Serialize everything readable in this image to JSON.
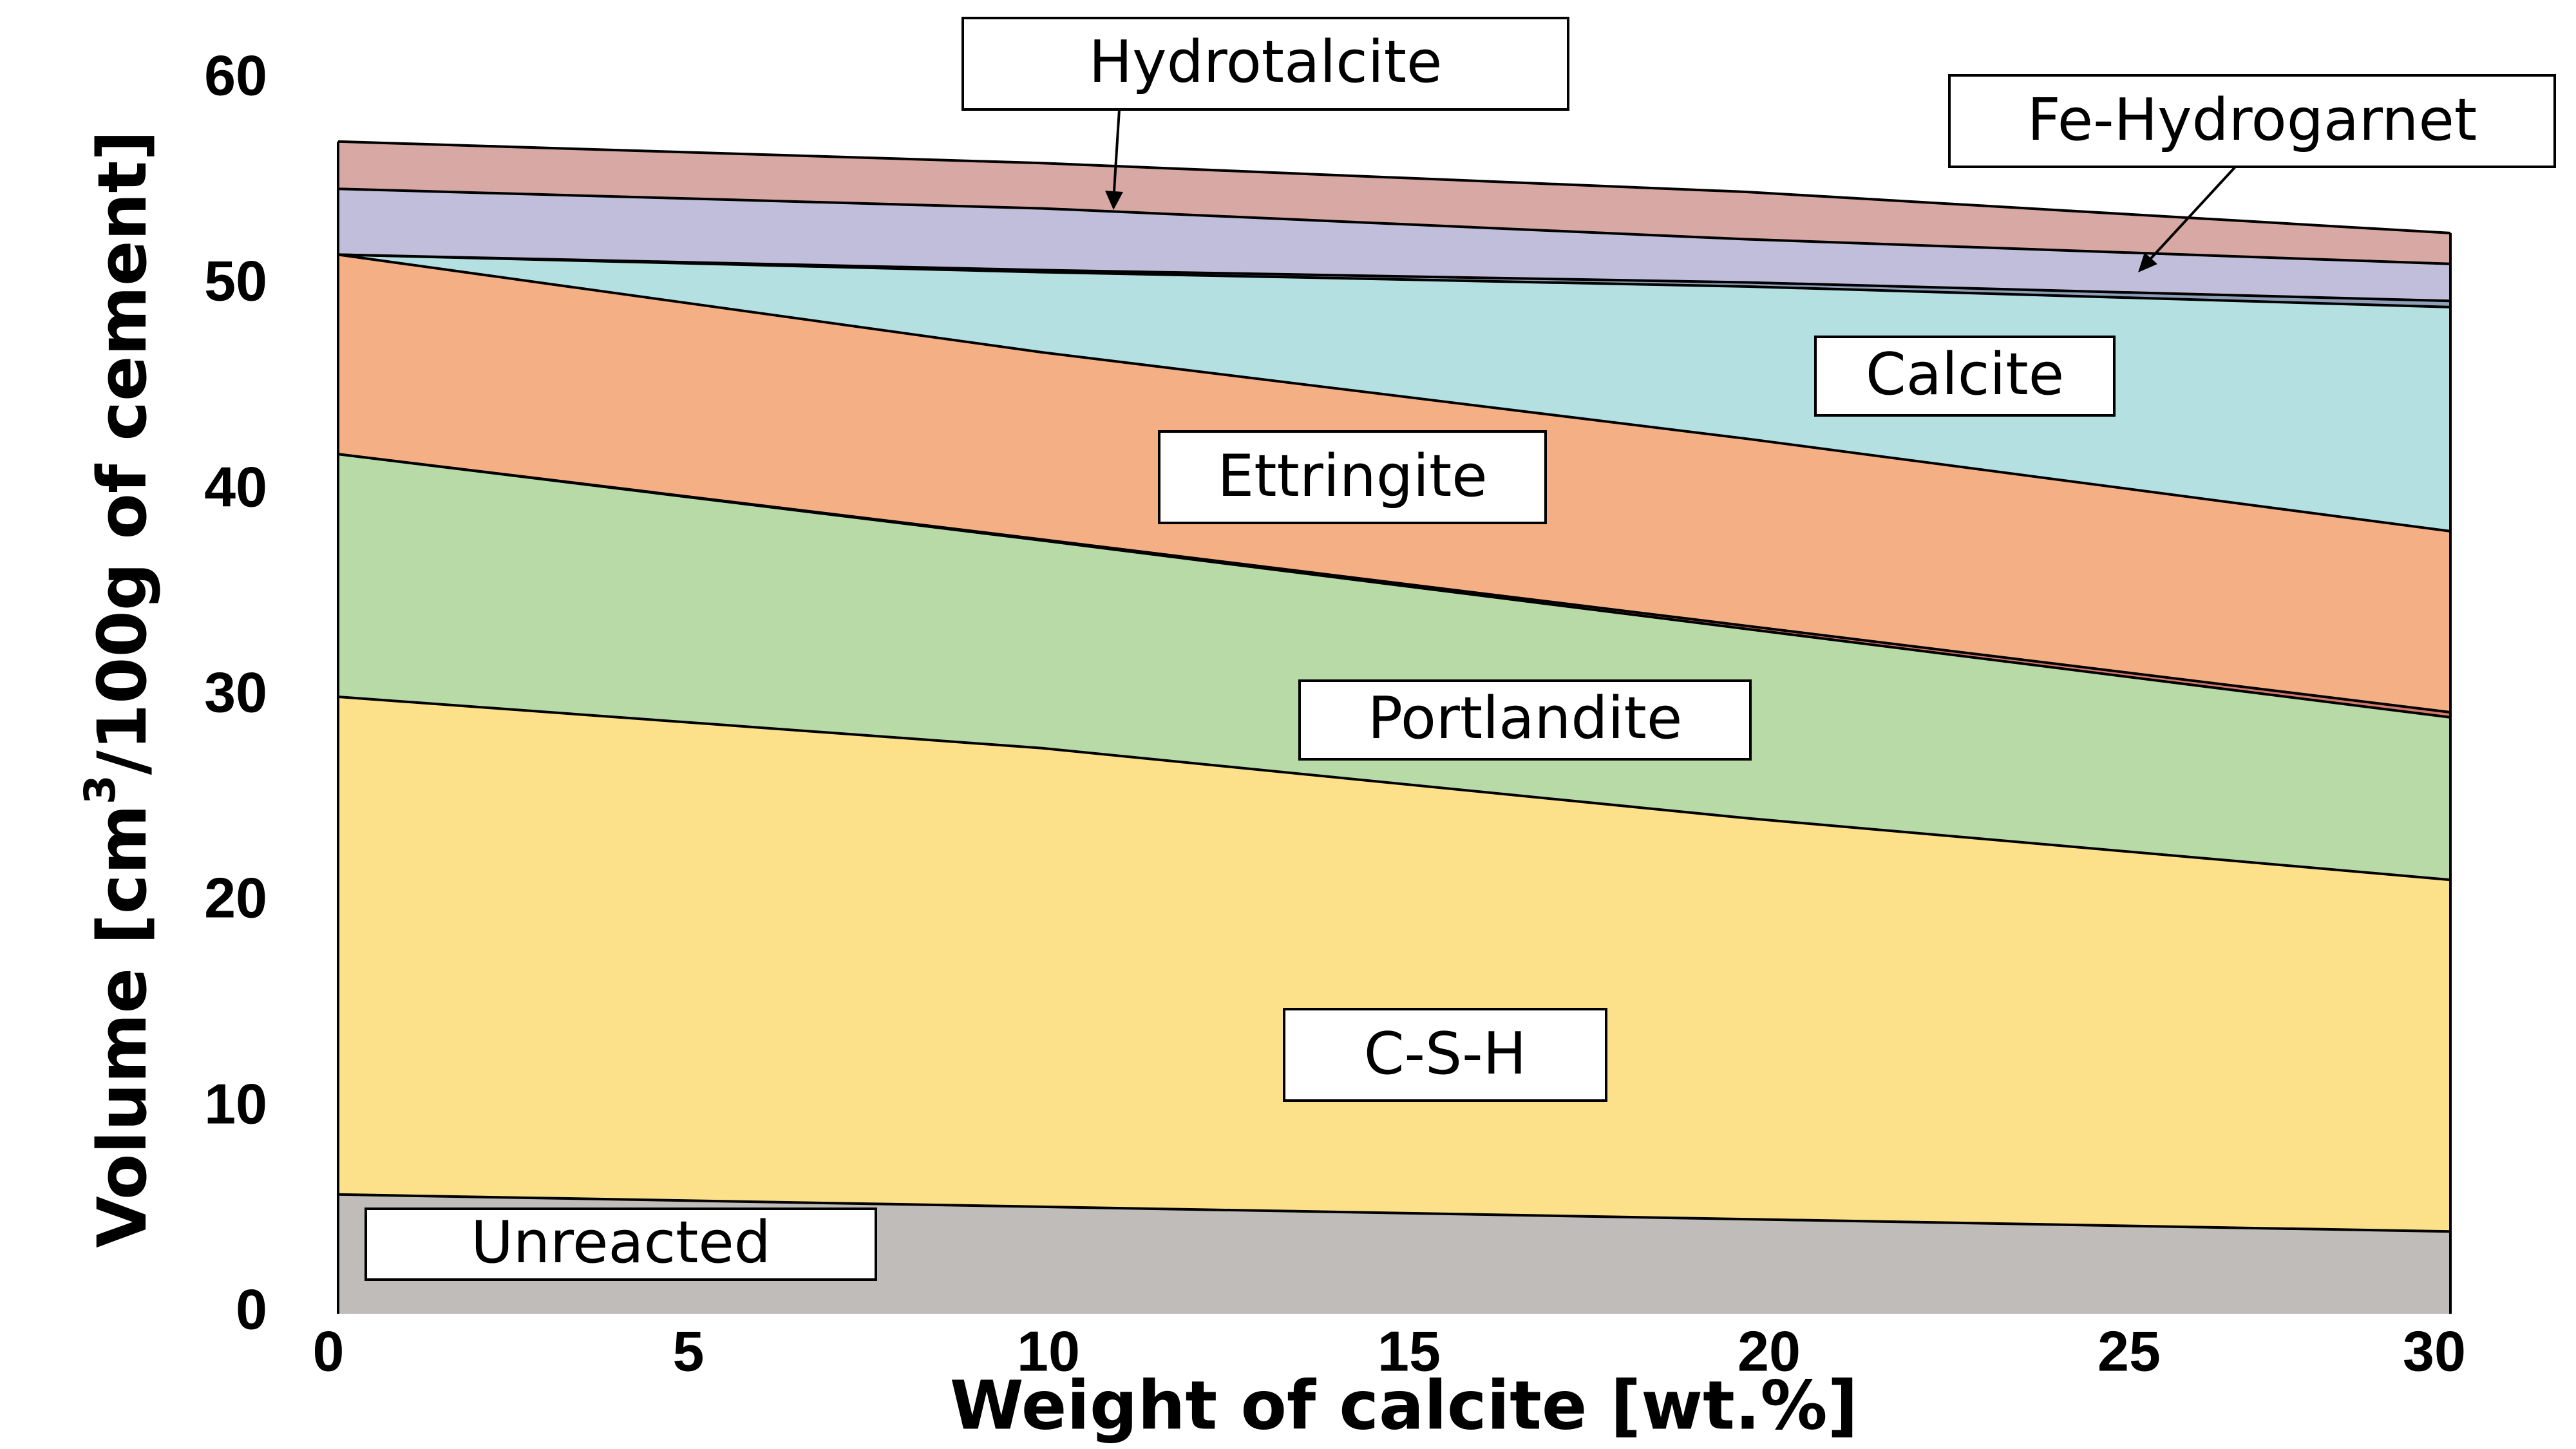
{
  "chart_data": {
    "type": "area",
    "title": "",
    "xlabel": "Weight of calcite [wt.%]",
    "ylabel_parts": [
      "Volume [cm",
      "3",
      "/100g of cement]"
    ],
    "xlim": [
      0,
      30
    ],
    "ylim": [
      0,
      60
    ],
    "xticks": [
      "0",
      "5",
      "10",
      "15",
      "20",
      "25",
      "30"
    ],
    "yticks": [
      "0",
      "10",
      "20",
      "30",
      "40",
      "50",
      "60"
    ],
    "stacked": true,
    "grid": false,
    "legend": "inline boxed labels",
    "x": [
      0,
      10,
      20,
      30
    ],
    "series": [
      {
        "name": "Unreacted",
        "values": [
          5.8,
          5.2,
          4.6,
          4.0
        ],
        "color": "#bfbcba"
      },
      {
        "name": "C-S-H",
        "values": [
          24.2,
          22.3,
          19.5,
          17.1
        ],
        "color": "#fde08a"
      },
      {
        "name": "Portlandite",
        "values": [
          11.8,
          10.1,
          9.2,
          7.9
        ],
        "color": "#b8daa6"
      },
      {
        "name": "",
        "values": [
          0,
          0.05,
          0.15,
          0.25
        ],
        "color": "#d47a6f"
      },
      {
        "name": "Ettringite",
        "values": [
          9.7,
          9.1,
          9.1,
          8.8
        ],
        "color": "#f4b084"
      },
      {
        "name": "Calcite",
        "values": [
          0,
          3.9,
          7.4,
          10.9
        ],
        "color": "#b4e0e2"
      },
      {
        "name": "",
        "values": [
          0,
          0.1,
          0.2,
          0.3
        ],
        "color": "#8e9fb8"
      },
      {
        "name": "Fe-Hydrogarnet",
        "values": [
          3.2,
          3.0,
          2.1,
          1.8
        ],
        "color": "#c1bedb"
      },
      {
        "name": "Hydrotalcite",
        "values": [
          2.3,
          2.2,
          2.3,
          1.5
        ],
        "color": "#d7a8a4"
      }
    ]
  },
  "labels": {
    "hydrotalcite": "Hydrotalcite",
    "fe_hydrogarnet": "Fe-Hydrogarnet",
    "calcite": "Calcite",
    "ettringite": "Ettringite",
    "portlandite": "Portlandite",
    "csh": "C-S-H",
    "unreacted": "Unreacted"
  }
}
